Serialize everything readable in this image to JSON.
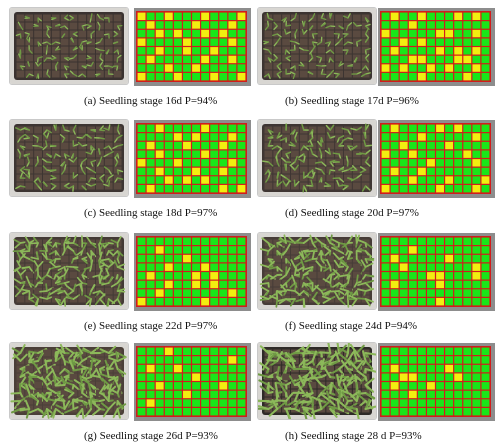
{
  "colors": {
    "filled": "#19e619",
    "empty": "#f2ef10",
    "cell_border": "#d21c1c",
    "grid_bg": "#8d8d8d"
  },
  "grid": {
    "rows": 8,
    "cols": 12
  },
  "panels": [
    {
      "caption": "(a) Seedling stage 16d P=94%",
      "growth": 0.25,
      "tray": "#3a3230",
      "cells": [
        "YGGYGGGYGGGY",
        "GYGGGGYGGGYG",
        "GGYGYGGYGYGG",
        "YGGGGYGGGGYG",
        "GGYGGYGGYGGG",
        "GYGGGGGYGGYG",
        "GGGYGGYGGGGG",
        "YGGGYGGGYGGY"
      ]
    },
    {
      "caption": "(b) Seedling stage 17d P=96%",
      "growth": 0.3,
      "tray": "#3c3431",
      "cells": [
        "GYGGYGGGYGYG",
        "GGGYGGGGGGGG",
        "YGGGGGYYGGYG",
        "GGYGYGGGGGGG",
        "GYGGGGYGYGYG",
        "GGGYYGGGYYGG",
        "YGYGGYGYGGYG",
        "GGGGYGGGGYGG"
      ]
    },
    {
      "caption": "(c) Seedling stage 18d P=97%",
      "growth": 0.35,
      "tray": "#3d3532",
      "cells": [
        "GGYGGGGYGGGG",
        "GGGGYGYGGGYG",
        "GYGGGYGGGYGG",
        "GGYGGGGYGGGG",
        "YGGGYGGGGGYG",
        "GGYGGGYGGYGG",
        "GGGYGYGYGGGG",
        "GYGGGGGGGYGY"
      ]
    },
    {
      "caption": "(d) Seedling stage 20d P=97%",
      "growth": 0.42,
      "tray": "#3f3633",
      "cells": [
        "GYGGGGYGYGGG",
        "GGGGYGGGGGYG",
        "GGYGGGGYGGGG",
        "YGGYGGGGGYGG",
        "GGGGGYGGGGYG",
        "GYGGYGGGGGGG",
        "GGGYGGGYGGGY",
        "YGGGGGYGGGYG"
      ]
    },
    {
      "caption": "(e) Seedling stage 22d P=97%",
      "growth": 0.55,
      "tray": "#433a35",
      "cells": [
        "GGGGGGGGGGGG",
        "GGYGGGGGGGGG",
        "GGGGGYGGGGGG",
        "GGGYGGGYGGGG",
        "GYGGGGYGYGGG",
        "GGGYGGYGYGGG",
        "GGYGGGGGGGYG",
        "YGGGGGGYGGGG"
      ]
    },
    {
      "caption": "(f) Seedling stage 24d P=94%",
      "growth": 0.65,
      "tray": "#463c37",
      "cells": [
        "GGGGGGGGGGGG",
        "GGGYGGGGGGGG",
        "GYGGGGGYGGGG",
        "GGYGGGGGGGYG",
        "GGGGGYYGGGYG",
        "GYGGGGYGGGGG",
        "GGGGGGGGGGGG",
        "GGGGGGYGGGGG"
      ]
    },
    {
      "caption": "(g) Seedling stage 26d P=93%",
      "growth": 0.78,
      "tray": "#4a3f38",
      "cells": [
        "GGGYGGGGGGGG",
        "GGGGGGGGGGYG",
        "GYGGYGGGGGGG",
        "GGGGGGYGGGGG",
        "GGYGGGGGGYGG",
        "GGGGGYGGGGGG",
        "GYGGGGGGGGGG",
        "GGGGGGGGGGGG"
      ]
    },
    {
      "caption": "(h) Seedling stage 28 d P=93%",
      "growth": 0.9,
      "tray": "#2e2a27",
      "cells": [
        "GGGGGGGGGGGG",
        "GGGGGGGGGGGG",
        "GYGGGGGYGGGG",
        "GGYYGGGGYGGG",
        "GYGGGYGGGGGG",
        "GGGYGGGGGGGG",
        "GGGGGGGGGGGG",
        "GGGGGGGGGGGG"
      ]
    }
  ]
}
